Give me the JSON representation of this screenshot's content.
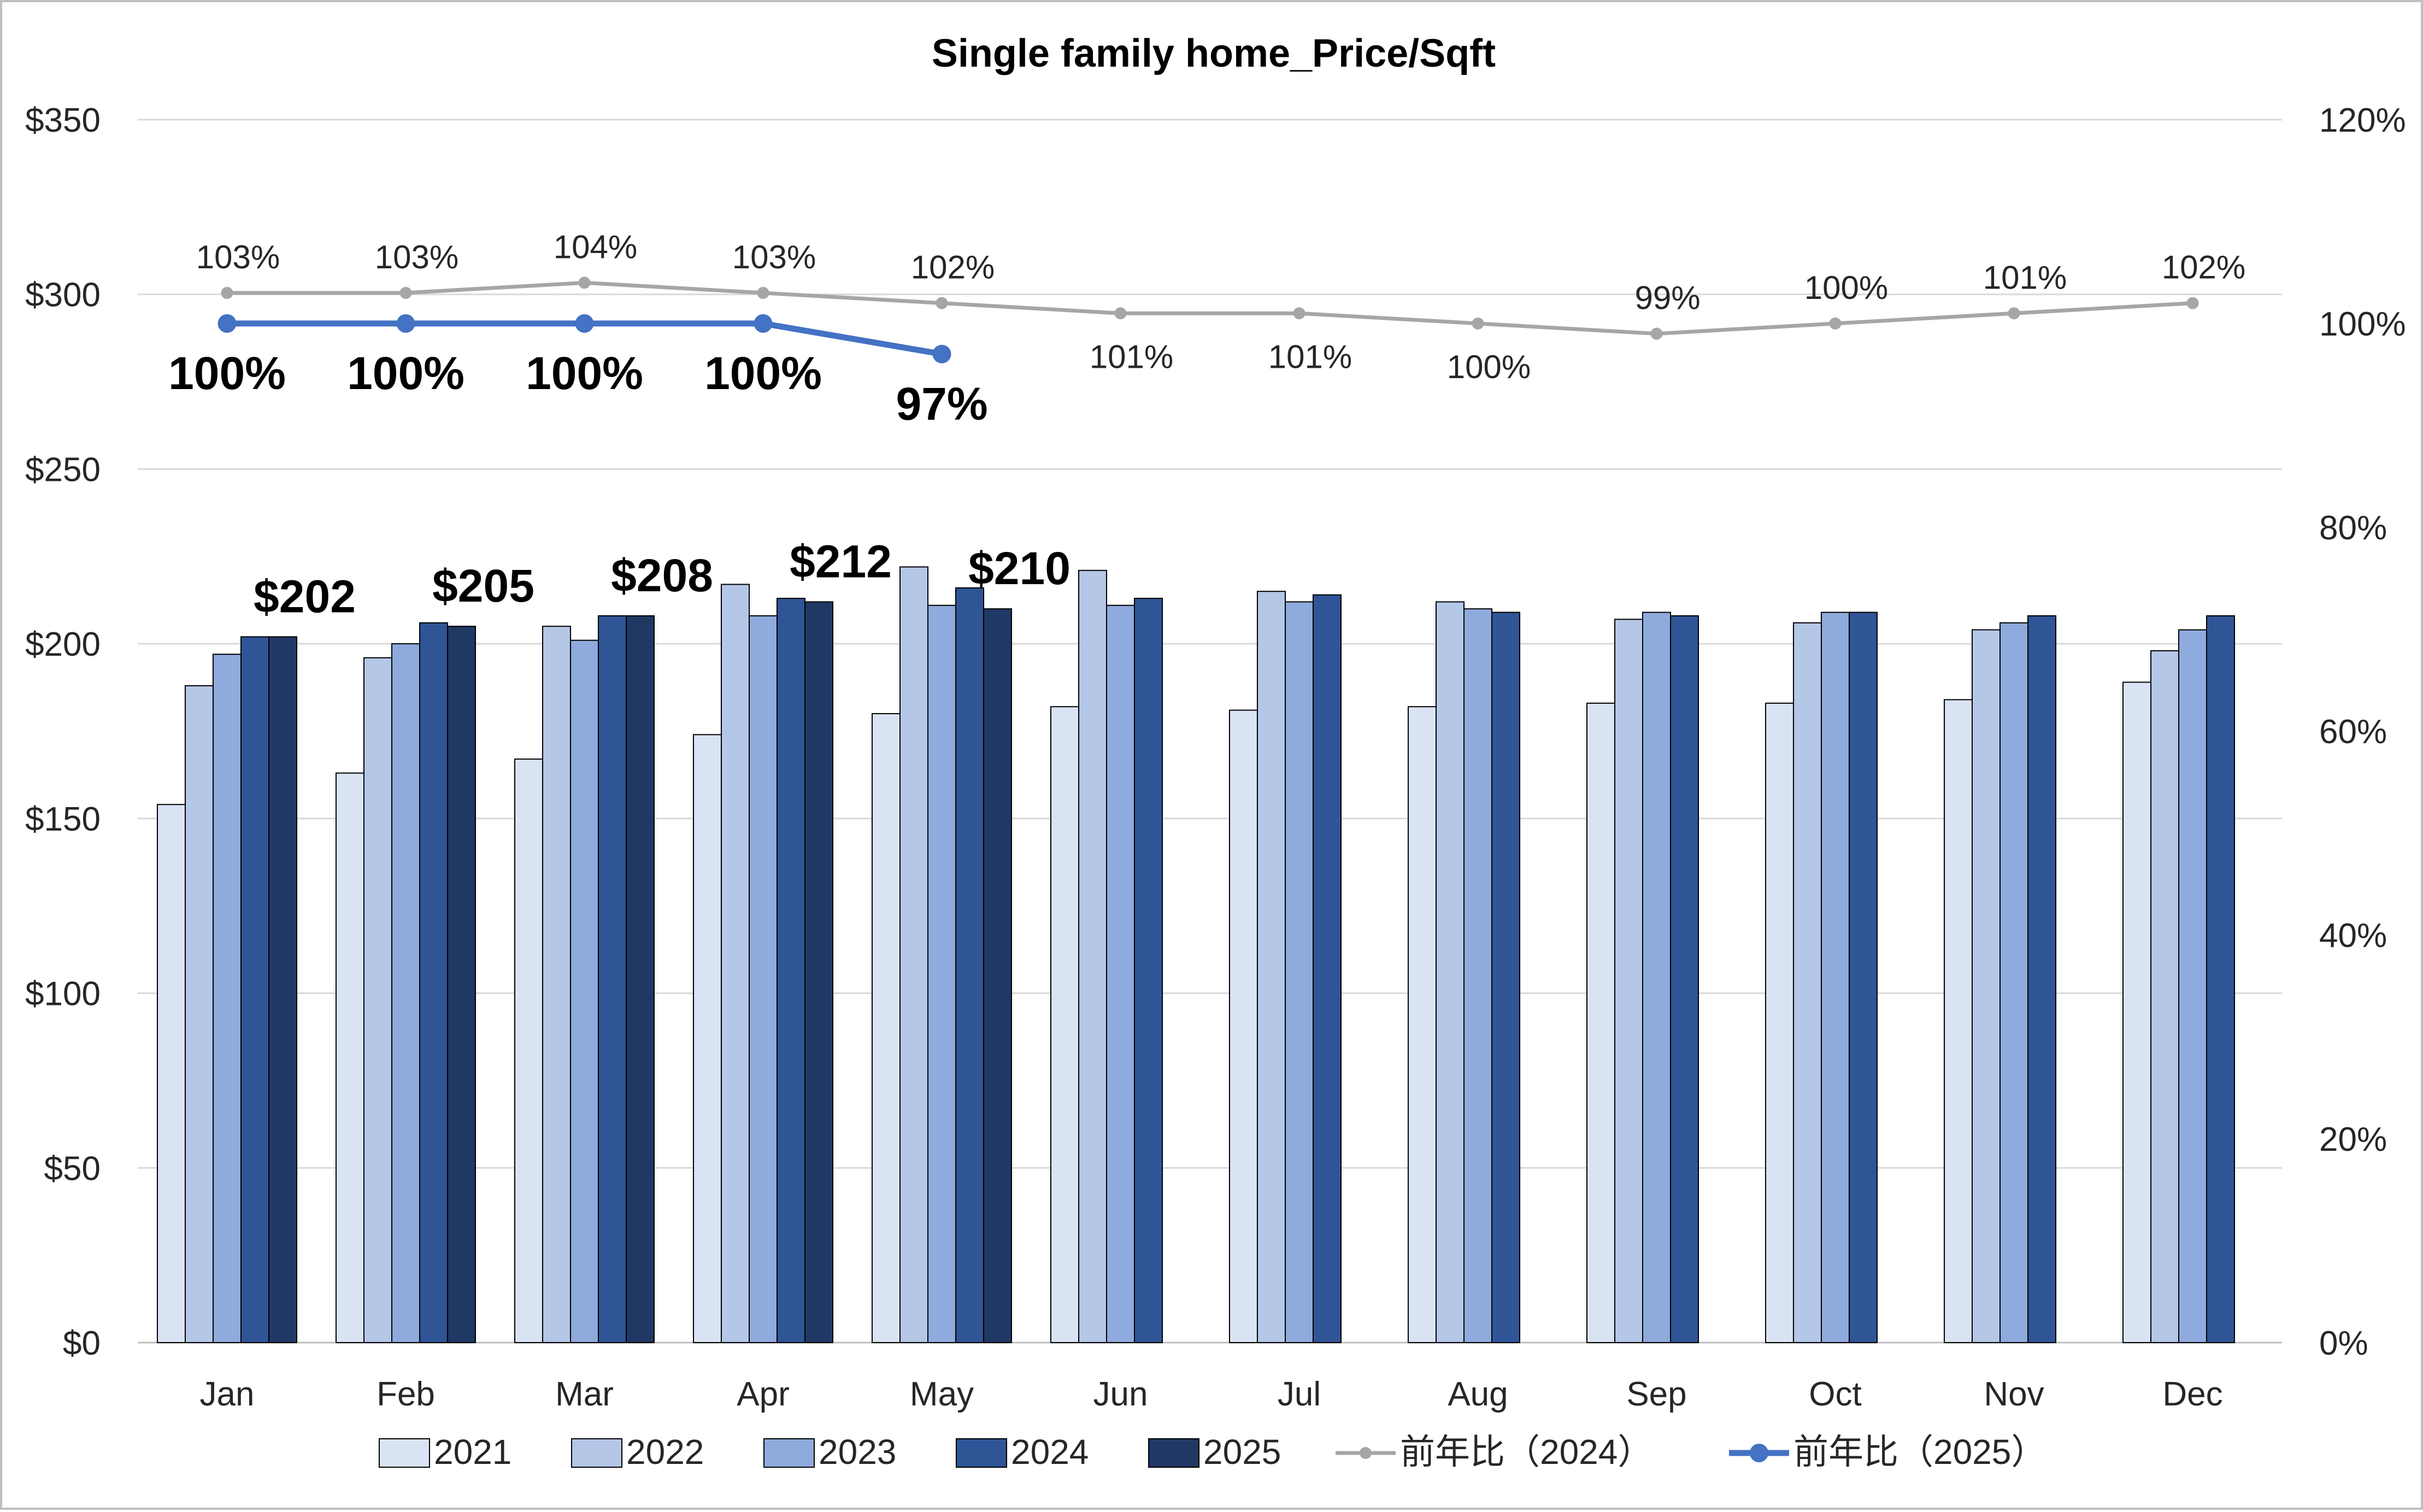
{
  "chart_data": {
    "type": "bar",
    "title": "Single family home_Price/Sqft",
    "categories": [
      "Jan",
      "Feb",
      "Mar",
      "Apr",
      "May",
      "Jun",
      "Jul",
      "Aug",
      "Sep",
      "Oct",
      "Nov",
      "Dec"
    ],
    "y_left": {
      "range": [
        0,
        350
      ],
      "ticks": [
        0,
        50,
        100,
        150,
        200,
        250,
        300,
        350
      ],
      "tick_labels": [
        "$0",
        "$50",
        "$100",
        "$150",
        "$200",
        "$250",
        "$300",
        "$350"
      ]
    },
    "y_right": {
      "range": [
        0,
        1.2
      ],
      "ticks": [
        0,
        0.2,
        0.4,
        0.6,
        0.8,
        1.0,
        1.2
      ],
      "tick_labels": [
        "0%",
        "20%",
        "40%",
        "60%",
        "80%",
        "100%",
        "120%"
      ]
    },
    "grid": true,
    "legend_position": "bottom",
    "series": [
      {
        "name": "2021",
        "kind": "bar",
        "color": "#dae3f3",
        "values": [
          154,
          163,
          167,
          174,
          180,
          182,
          181,
          182,
          183,
          183,
          184,
          189
        ]
      },
      {
        "name": "2022",
        "kind": "bar",
        "color": "#b4c7e7",
        "values": [
          188,
          196,
          205,
          217,
          222,
          221,
          215,
          212,
          207,
          206,
          204,
          198
        ]
      },
      {
        "name": "2023",
        "kind": "bar",
        "color": "#8faadc",
        "values": [
          197,
          200,
          201,
          208,
          211,
          211,
          212,
          210,
          209,
          209,
          206,
          204
        ]
      },
      {
        "name": "2024",
        "kind": "bar",
        "color": "#2f5597",
        "values": [
          202,
          206,
          208,
          213,
          216,
          213,
          214,
          209,
          208,
          209,
          208,
          208
        ]
      },
      {
        "name": "2025",
        "kind": "bar",
        "color": "#203864",
        "values": [
          202,
          205,
          208,
          212,
          210,
          null,
          null,
          null,
          null,
          null,
          null,
          null
        ],
        "data_labels": [
          "$202",
          "$205",
          "$208",
          "$212",
          "$210",
          "",
          "",
          "",
          "",
          "",
          "",
          ""
        ]
      },
      {
        "name": "前年比（2024）",
        "kind": "line",
        "axis": "right",
        "color": "#a6a6a6",
        "values": [
          1.03,
          1.03,
          1.04,
          1.03,
          1.02,
          1.01,
          1.01,
          1.0,
          0.99,
          1.0,
          1.01,
          1.02
        ],
        "data_labels": [
          "103%",
          "103%",
          "104%",
          "103%",
          "102%",
          "101%",
          "101%",
          "100%",
          "99%",
          "100%",
          "101%",
          "102%"
        ]
      },
      {
        "name": "前年比（2025）",
        "kind": "line",
        "axis": "right",
        "color": "#4472c4",
        "values": [
          1.0,
          1.0,
          1.0,
          1.0,
          0.97,
          null,
          null,
          null,
          null,
          null,
          null,
          null
        ],
        "data_labels": [
          "100%",
          "100%",
          "100%",
          "100%",
          "97%",
          "",
          "",
          "",
          "",
          "",
          "",
          ""
        ]
      }
    ]
  }
}
